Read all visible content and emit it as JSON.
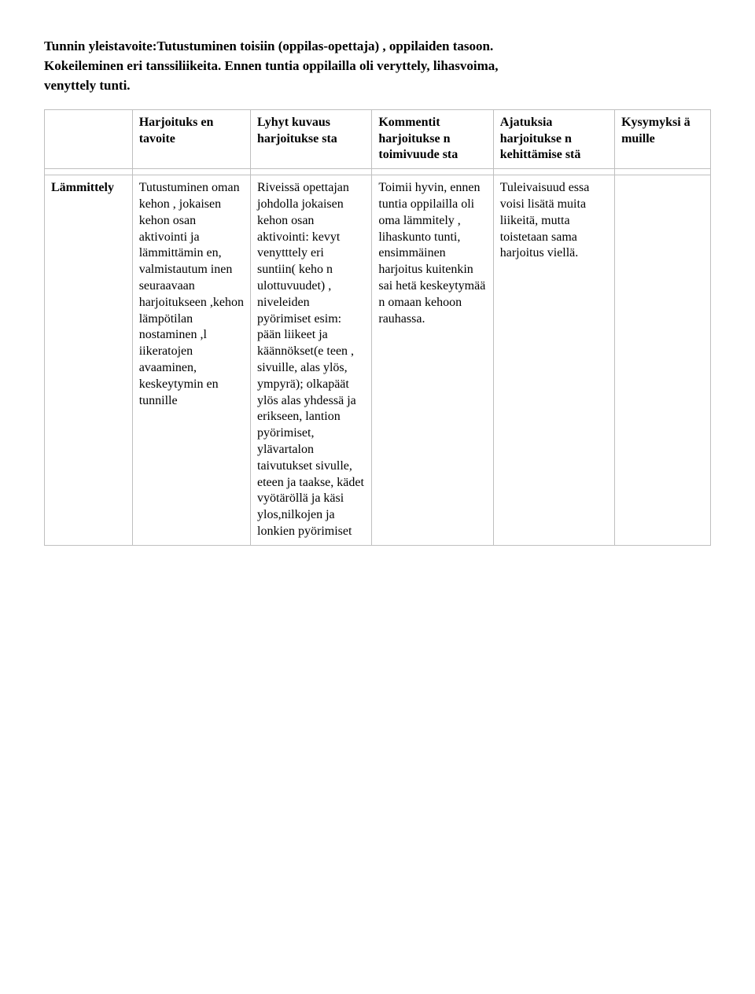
{
  "intro": {
    "line1": "Tunnin yleistavoite:Tutustuminen toisiin (oppilas-opettaja) , oppilaiden tasoon.",
    "line2": "Kokeileminen eri tanssiliikeita. Ennen tuntia oppilailla oli veryttely, lihasvoima,",
    "line3": "venyttely tunti."
  },
  "headers": {
    "c0": "",
    "c1": "Harjoituks en tavoite",
    "c2": "Lyhyt kuvaus harjoitukse sta",
    "c3": "Kommentit harjoitukse n toimivuude sta",
    "c4": "Ajatuksia harjoitukse n kehittämise stä",
    "c5": "Kysymyksi ä muille"
  },
  "row": {
    "label": "Lämmittely",
    "c1": "Tutustuminen oman kehon , jokaisen kehon osan aktivointi ja lämmittämin en, valmistautum inen seuraavaan harjoitukseen ,kehon lämpötilan nostaminen ,l iikeratojen avaaminen, keskeytymin en tunnille",
    "c2": "Riveissä opettajan johdolla jokaisen kehon osan aktivointi: kevyt venytttely eri suntiin( keho n ulottuvuudet) , niveleiden pyörimiset esim: pään liikeet ja käännökset(e teen , sivuille, alas ylös, ympyrä); olkapäät ylös alas yhdessä ja erikseen, lantion pyörimiset, ylävartalon taivutukset sivulle, eteen ja taakse, kädet vyötäröllä ja käsi ylos,nilkojen ja lonkien pyörimiset",
    "c3": "Toimii hyvin, ennen tuntia oppilailla oli oma lämmitely , lihaskunto tunti, ensimmäinen harjoitus kuitenkin sai hetä keskeytymää n omaan kehoon rauhassa.",
    "c4": "Tuleivaisuud essa voisi lisätä muita liikeitä, mutta toistetaan sama harjoitus viellä.",
    "c5": ""
  }
}
